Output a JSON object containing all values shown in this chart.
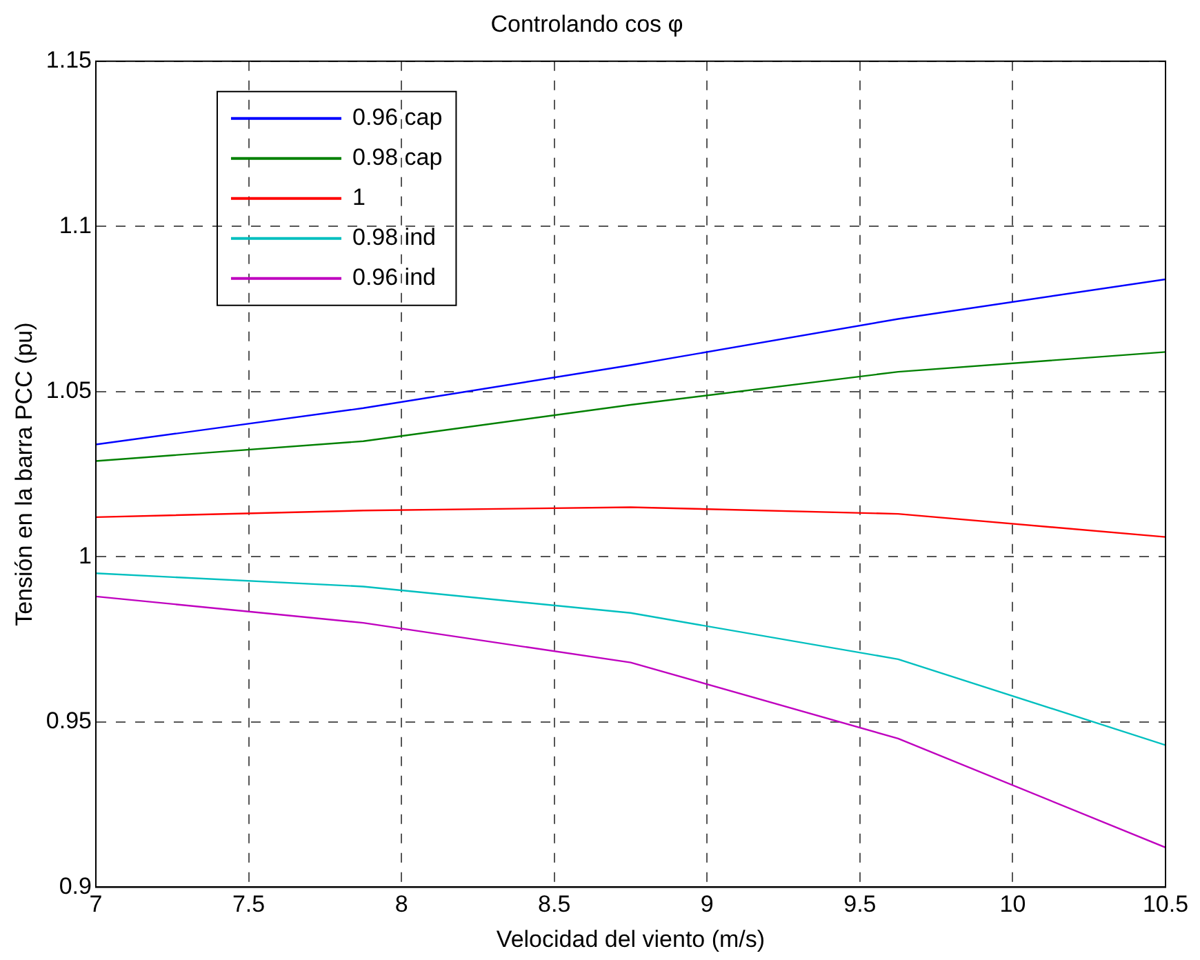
{
  "chart_data": {
    "type": "line",
    "title": "Controlando cos φ",
    "xlabel": "Velocidad del viento (m/s)",
    "ylabel": "Tensión en la barra PCC (pu)",
    "x": [
      7,
      7.875,
      8.75,
      9.625,
      10.5
    ],
    "series": [
      {
        "name": "0.96 cap",
        "color": "#0000ff",
        "values": [
          1.034,
          1.045,
          1.058,
          1.072,
          1.084
        ]
      },
      {
        "name": "0.98 cap",
        "color": "#008000",
        "values": [
          1.029,
          1.035,
          1.046,
          1.056,
          1.062
        ]
      },
      {
        "name": "1",
        "color": "#ff0000",
        "values": [
          1.012,
          1.014,
          1.015,
          1.013,
          1.006
        ]
      },
      {
        "name": "0.98 ind",
        "color": "#00bfbf",
        "values": [
          0.995,
          0.991,
          0.983,
          0.969,
          0.943
        ]
      },
      {
        "name": "0.96 ind",
        "color": "#bf00bf",
        "values": [
          0.988,
          0.98,
          0.968,
          0.945,
          0.912
        ]
      }
    ],
    "xlim": [
      7,
      10.5
    ],
    "xticks": [
      7,
      7.5,
      8,
      8.5,
      9,
      9.5,
      10,
      10.5
    ],
    "ylim": [
      0.9,
      1.15
    ],
    "yticks": [
      0.9,
      0.95,
      1,
      1.05,
      1.1,
      1.15
    ],
    "grid": true,
    "legend": "top left",
    "marker": "none",
    "line_style": "solid"
  }
}
